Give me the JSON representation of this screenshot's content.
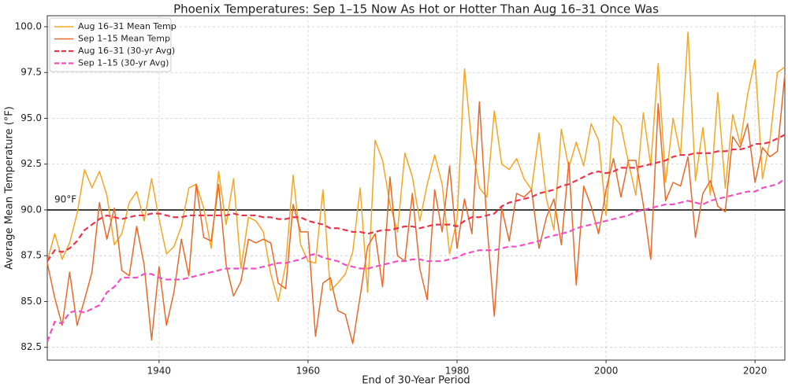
{
  "chart_data": {
    "type": "line",
    "title": "Phoenix Temperatures: Sep 1–15 Now As Hot or Hotter Than Aug 16–31 Once Was",
    "xlabel": "End of 30-Year Period",
    "ylabel": "Average Mean Temperature (°F)",
    "x": [
      1925,
      1926,
      1927,
      1928,
      1929,
      1930,
      1931,
      1932,
      1933,
      1934,
      1935,
      1936,
      1937,
      1938,
      1939,
      1940,
      1941,
      1942,
      1943,
      1944,
      1945,
      1946,
      1947,
      1948,
      1949,
      1950,
      1951,
      1952,
      1953,
      1954,
      1955,
      1956,
      1957,
      1958,
      1959,
      1960,
      1961,
      1962,
      1963,
      1964,
      1965,
      1966,
      1967,
      1968,
      1969,
      1970,
      1971,
      1972,
      1973,
      1974,
      1975,
      1976,
      1977,
      1978,
      1979,
      1980,
      1981,
      1982,
      1983,
      1984,
      1985,
      1986,
      1987,
      1988,
      1989,
      1990,
      1991,
      1992,
      1993,
      1994,
      1995,
      1996,
      1997,
      1998,
      1999,
      2000,
      2001,
      2002,
      2003,
      2004,
      2005,
      2006,
      2007,
      2008,
      2009,
      2010,
      2011,
      2012,
      2013,
      2014,
      2015,
      2016,
      2017,
      2018,
      2019,
      2020,
      2021,
      2022,
      2023,
      2024
    ],
    "series": [
      {
        "name": "Aug 16–31 Mean Temp",
        "color": "#f5a623",
        "dashed": false,
        "values": [
          87.2,
          88.7,
          87.3,
          88.2,
          89.8,
          92.2,
          91.2,
          92.1,
          90.8,
          88.1,
          88.7,
          90.4,
          91.0,
          89.4,
          91.7,
          89.5,
          87.6,
          88.0,
          89.1,
          91.2,
          91.4,
          90.1,
          87.9,
          92.1,
          89.2,
          91.7,
          86.8,
          89.6,
          89.4,
          88.8,
          86.5,
          85.0,
          87.0,
          91.9,
          88.1,
          87.2,
          87.1,
          91.1,
          85.6,
          86.0,
          86.5,
          87.7,
          91.2,
          85.5,
          93.8,
          92.7,
          90.3,
          88.8,
          93.1,
          91.8,
          89.4,
          91.4,
          93.0,
          91.4,
          87.6,
          89.5,
          97.7,
          93.5,
          91.2,
          90.7,
          95.4,
          92.5,
          92.2,
          92.8,
          91.7,
          91.1,
          94.2,
          90.6,
          88.9,
          94.4,
          92.3,
          93.7,
          92.4,
          94.7,
          93.8,
          89.7,
          95.1,
          94.6,
          92.6,
          90.8,
          95.3,
          92.4,
          98.0,
          91.5,
          95.0,
          93.0,
          99.7,
          91.6,
          94.5,
          90.8,
          96.4,
          91.2,
          95.2,
          93.6,
          96.3,
          98.2,
          91.7,
          93.8,
          97.5,
          97.8
        ]
      },
      {
        "name": "Sep 1–15 Mean Temp",
        "color": "#e8692a",
        "dashed": false,
        "values": [
          87.1,
          85.2,
          83.7,
          86.6,
          83.7,
          85.1,
          86.6,
          90.4,
          88.4,
          90.1,
          86.7,
          86.4,
          89.1,
          87.0,
          82.9,
          86.9,
          83.7,
          85.5,
          88.4,
          86.4,
          91.4,
          88.5,
          88.3,
          91.4,
          87.0,
          85.3,
          86.1,
          88.4,
          88.2,
          88.4,
          88.2,
          86.0,
          85.7,
          90.3,
          88.8,
          88.8,
          83.1,
          86.0,
          86.3,
          84.5,
          84.3,
          82.7,
          85.3,
          88.0,
          88.7,
          85.8,
          91.8,
          87.5,
          87.2,
          90.9,
          86.8,
          85.1,
          91.1,
          88.8,
          92.4,
          87.9,
          90.6,
          88.7,
          95.9,
          89.3,
          84.2,
          90.1,
          88.3,
          90.9,
          90.7,
          91.1,
          87.9,
          89.6,
          90.6,
          88.1,
          92.6,
          85.9,
          91.3,
          90.2,
          88.7,
          91.1,
          92.8,
          90.7,
          92.7,
          92.7,
          90.3,
          87.3,
          95.8,
          90.5,
          91.5,
          91.3,
          92.9,
          88.5,
          90.9,
          91.6,
          90.2,
          89.9,
          94.0,
          93.4,
          94.7,
          91.5,
          93.4,
          92.9,
          93.2,
          97.4
        ]
      },
      {
        "name": "Aug 16–31 (30-yr Avg)",
        "color": "#e8344e",
        "dashed": true,
        "values": [
          87.2,
          87.8,
          87.7,
          87.9,
          88.3,
          88.9,
          89.2,
          89.5,
          89.7,
          89.6,
          89.5,
          89.6,
          89.7,
          89.7,
          89.8,
          89.8,
          89.7,
          89.6,
          89.6,
          89.7,
          89.7,
          89.7,
          89.7,
          89.7,
          89.7,
          89.8,
          89.7,
          89.7,
          89.7,
          89.6,
          89.6,
          89.5,
          89.5,
          89.6,
          89.6,
          89.4,
          89.3,
          89.2,
          89.0,
          89.0,
          88.9,
          88.8,
          88.8,
          88.7,
          88.8,
          88.9,
          88.9,
          89.0,
          89.1,
          89.1,
          89.0,
          89.1,
          89.2,
          89.2,
          89.2,
          89.1,
          89.4,
          89.6,
          89.6,
          89.7,
          89.8,
          90.2,
          90.4,
          90.5,
          90.6,
          90.7,
          90.9,
          91.0,
          91.1,
          91.3,
          91.4,
          91.6,
          91.8,
          92.0,
          92.1,
          92.0,
          92.1,
          92.3,
          92.3,
          92.3,
          92.4,
          92.5,
          92.6,
          92.7,
          92.9,
          93.0,
          93.0,
          93.1,
          93.1,
          93.1,
          93.2,
          93.2,
          93.3,
          93.3,
          93.4,
          93.6,
          93.6,
          93.7,
          93.9,
          94.1
        ]
      },
      {
        "name": "Sep 1–15 (30-yr Avg)",
        "color": "#f050c0",
        "dashed": true,
        "values": [
          82.8,
          83.9,
          83.8,
          84.4,
          84.5,
          84.4,
          84.6,
          84.8,
          85.5,
          85.8,
          86.3,
          86.3,
          86.3,
          86.5,
          86.5,
          86.3,
          86.2,
          86.2,
          86.2,
          86.3,
          86.4,
          86.5,
          86.6,
          86.7,
          86.8,
          86.8,
          86.8,
          86.8,
          86.8,
          86.9,
          87.0,
          87.1,
          87.1,
          87.2,
          87.3,
          87.5,
          87.6,
          87.4,
          87.3,
          87.2,
          87.0,
          86.9,
          86.8,
          86.8,
          86.9,
          87.0,
          87.1,
          87.2,
          87.2,
          87.3,
          87.3,
          87.2,
          87.2,
          87.2,
          87.3,
          87.4,
          87.6,
          87.7,
          87.8,
          87.8,
          87.8,
          87.9,
          88.0,
          88.0,
          88.1,
          88.2,
          88.3,
          88.5,
          88.6,
          88.7,
          88.8,
          89.0,
          89.1,
          89.2,
          89.3,
          89.4,
          89.5,
          89.6,
          89.7,
          89.9,
          90.0,
          90.1,
          90.2,
          90.3,
          90.3,
          90.4,
          90.5,
          90.4,
          90.3,
          90.5,
          90.6,
          90.7,
          90.8,
          90.9,
          91.0,
          91.0,
          91.2,
          91.3,
          91.4,
          91.7
        ]
      }
    ],
    "hline": {
      "value": 90,
      "label": "90°F",
      "color": "#000000"
    },
    "xlim": [
      1925,
      2024
    ],
    "ylim": [
      81.8,
      100.6
    ],
    "xticks": [
      1940,
      1960,
      1980,
      2000,
      2020
    ],
    "yticks": [
      {
        "value": 82.5,
        "label": "82.5"
      },
      {
        "value": 85,
        "label": "85.0"
      },
      {
        "value": 87.5,
        "label": "87.5"
      },
      {
        "value": 90,
        "label": "90.0"
      },
      {
        "value": 92.5,
        "label": "92.5"
      },
      {
        "value": 95,
        "label": "95.0"
      },
      {
        "value": 97.5,
        "label": "97.5"
      },
      {
        "value": 100,
        "label": "100.0"
      }
    ],
    "grid": true,
    "legend": "upper left"
  }
}
